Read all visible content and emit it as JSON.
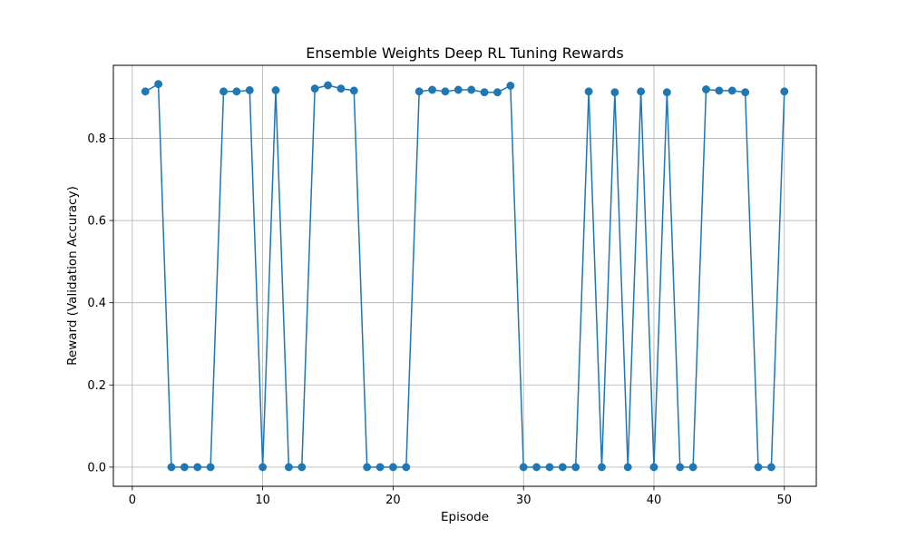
{
  "chart_data": {
    "type": "line",
    "title": "Ensemble Weights Deep RL Tuning Rewards",
    "xlabel": "Episode",
    "ylabel": "Reward (Validation Accuracy)",
    "xlim": [
      -1.45,
      52.45
    ],
    "ylim": [
      -0.0466,
      0.9776
    ],
    "x_ticks": [
      0,
      10,
      20,
      30,
      40,
      50
    ],
    "x_tick_labels": [
      "0",
      "10",
      "20",
      "30",
      "40",
      "50"
    ],
    "y_ticks": [
      0.0,
      0.2,
      0.4,
      0.6,
      0.8
    ],
    "y_tick_labels": [
      "0.0",
      "0.2",
      "0.4",
      "0.6",
      "0.8"
    ],
    "grid": true,
    "marker": "circle",
    "series": [
      {
        "color": "#1f77b4",
        "x": [
          1,
          2,
          3,
          4,
          5,
          6,
          7,
          8,
          9,
          10,
          11,
          12,
          13,
          14,
          15,
          16,
          17,
          18,
          19,
          20,
          21,
          22,
          23,
          24,
          25,
          26,
          27,
          28,
          29,
          30,
          31,
          32,
          33,
          34,
          35,
          36,
          37,
          38,
          39,
          40,
          41,
          42,
          43,
          44,
          45,
          46,
          47,
          48,
          49,
          50
        ],
        "y": [
          0.914,
          0.932,
          0.0,
          0.0,
          0.0,
          0.0,
          0.914,
          0.914,
          0.917,
          0.0,
          0.917,
          0.0,
          0.0,
          0.921,
          0.929,
          0.921,
          0.916,
          0.0,
          0.0,
          0.0,
          0.0,
          0.914,
          0.918,
          0.914,
          0.918,
          0.918,
          0.912,
          0.912,
          0.928,
          0.0,
          0.0,
          0.0,
          0.0,
          0.0,
          0.914,
          0.0,
          0.912,
          0.0,
          0.914,
          0.0,
          0.912,
          0.0,
          0.0,
          0.919,
          0.916,
          0.916,
          0.912,
          0.0,
          0.0,
          0.914
        ]
      }
    ]
  }
}
